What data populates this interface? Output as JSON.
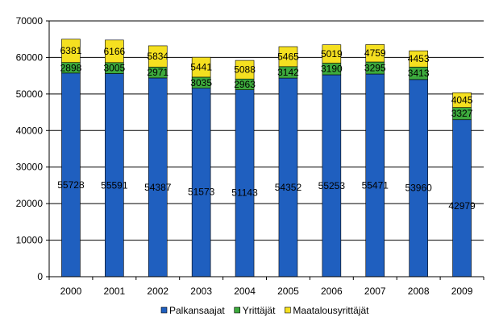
{
  "chart_data": {
    "type": "bar",
    "stacked": true,
    "categories": [
      "2000",
      "2001",
      "2002",
      "2003",
      "2004",
      "2005",
      "2006",
      "2007",
      "2008",
      "2009"
    ],
    "series": [
      {
        "name": "Palkansaajat",
        "color": "#1F5FBF",
        "values": [
          55728,
          55591,
          54387,
          51573,
          51143,
          54352,
          55253,
          55471,
          53960,
          42979
        ]
      },
      {
        "name": "Yrittäjät",
        "color": "#3DAA3D",
        "values": [
          2898,
          3005,
          2971,
          3035,
          2963,
          3142,
          3190,
          3295,
          3413,
          3327
        ]
      },
      {
        "name": "Maatalousyrittäjät",
        "color": "#F5E020",
        "values": [
          6381,
          6166,
          5834,
          5441,
          5088,
          5465,
          5019,
          4759,
          4453,
          4045
        ]
      }
    ],
    "ylim": [
      0,
      70000
    ],
    "yticks": [
      "0",
      "10000",
      "20000",
      "30000",
      "40000",
      "50000",
      "60000",
      "70000"
    ],
    "grid": true,
    "legend_position": "bottom"
  }
}
